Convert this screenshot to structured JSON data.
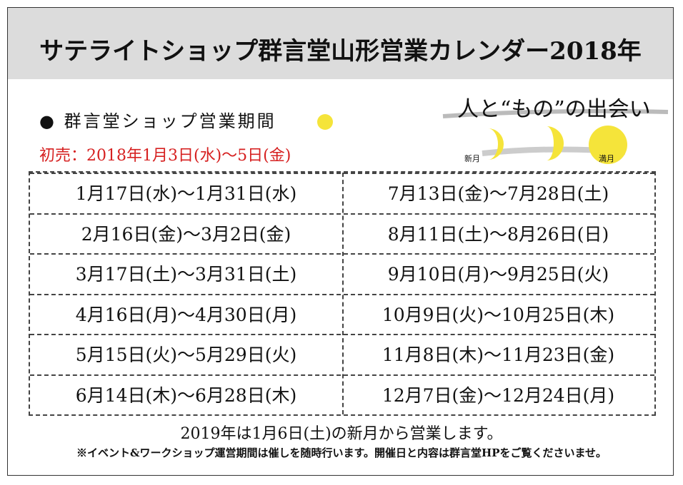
{
  "header": {
    "title": "サテライトショップ群言堂山形営業カレンダー2018年"
  },
  "section": {
    "heading": "● 群言堂ショップ営業期間",
    "first_sale": "初売：2018年1月3日(水)〜5日(金)"
  },
  "logo": {
    "tagline": "人と“もの”の出会い",
    "new_moon": "新月",
    "full_moon": "満月"
  },
  "table": {
    "rows": [
      [
        "1月17日(水)〜1月31日(水)",
        "7月13日(金)〜7月28日(土)"
      ],
      [
        "2月16日(金)〜3月2日(金)",
        "8月11日(土)〜8月26日(日)"
      ],
      [
        "3月17日(土)〜3月31日(土)",
        "9月10日(月)〜9月25日(火)"
      ],
      [
        "4月16日(月)〜4月30日(月)",
        "10月9日(火)〜10月25日(木)"
      ],
      [
        "5月15日(火)〜5月29日(火)",
        "11月8日(木)〜11月23日(金)"
      ],
      [
        "6月14日(木)〜6月28日(木)",
        "12月7日(金)〜12月24日(月)"
      ]
    ]
  },
  "footer": {
    "notice": "2019年は1月6日(土)の新月から営業します。",
    "note": "※イベント&ワークショップ運営期間は催しを随時行います。開催日と内容は群言堂HPをご覧くださいませ。"
  }
}
